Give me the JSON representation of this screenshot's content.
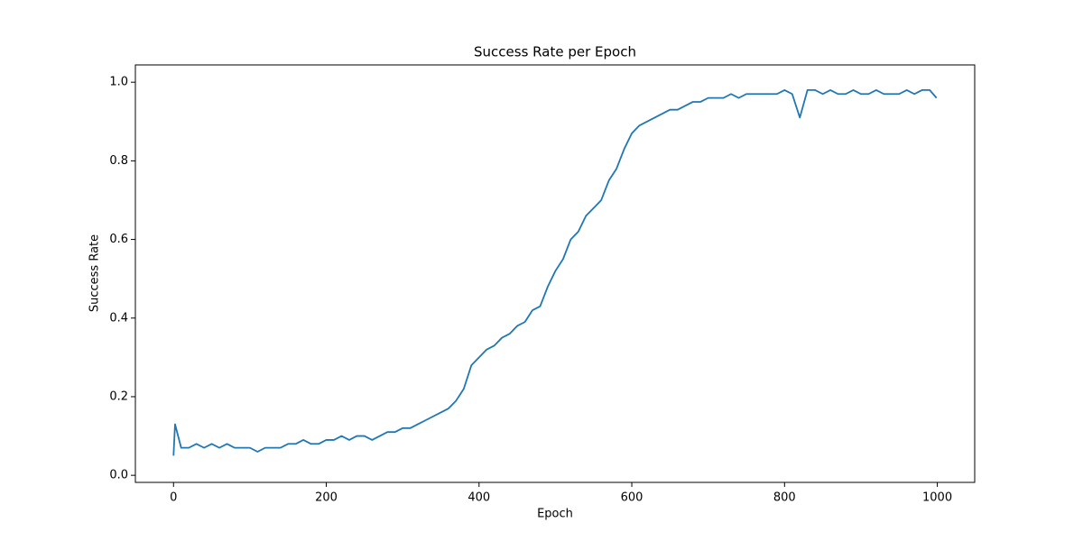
{
  "chart_data": {
    "type": "line",
    "title": "Success Rate per Epoch",
    "x_label": "Epoch",
    "y_label": "Success Rate",
    "x": [
      0,
      2,
      10,
      20,
      30,
      40,
      50,
      60,
      70,
      80,
      90,
      100,
      110,
      120,
      130,
      140,
      150,
      160,
      170,
      180,
      190,
      200,
      210,
      220,
      230,
      240,
      250,
      260,
      270,
      280,
      290,
      300,
      310,
      320,
      330,
      340,
      350,
      360,
      370,
      380,
      390,
      400,
      410,
      420,
      430,
      440,
      450,
      460,
      470,
      480,
      490,
      500,
      510,
      520,
      530,
      540,
      550,
      560,
      570,
      580,
      590,
      600,
      610,
      620,
      630,
      640,
      650,
      660,
      670,
      680,
      690,
      700,
      710,
      720,
      730,
      740,
      750,
      760,
      770,
      780,
      790,
      800,
      810,
      820,
      830,
      840,
      850,
      860,
      870,
      880,
      890,
      900,
      910,
      920,
      930,
      940,
      950,
      960,
      970,
      980,
      990,
      999
    ],
    "series": [
      {
        "name": "Success Rate",
        "color": "#1f77b4",
        "values": [
          0.05,
          0.13,
          0.07,
          0.07,
          0.08,
          0.07,
          0.08,
          0.07,
          0.08,
          0.07,
          0.07,
          0.07,
          0.06,
          0.07,
          0.07,
          0.07,
          0.08,
          0.08,
          0.09,
          0.08,
          0.08,
          0.09,
          0.09,
          0.1,
          0.09,
          0.1,
          0.1,
          0.09,
          0.1,
          0.11,
          0.11,
          0.12,
          0.12,
          0.13,
          0.14,
          0.15,
          0.16,
          0.17,
          0.19,
          0.22,
          0.28,
          0.3,
          0.32,
          0.33,
          0.35,
          0.36,
          0.38,
          0.39,
          0.42,
          0.43,
          0.48,
          0.52,
          0.55,
          0.6,
          0.62,
          0.66,
          0.68,
          0.7,
          0.75,
          0.78,
          0.83,
          0.87,
          0.89,
          0.9,
          0.91,
          0.92,
          0.93,
          0.93,
          0.94,
          0.95,
          0.95,
          0.96,
          0.96,
          0.96,
          0.97,
          0.96,
          0.97,
          0.97,
          0.97,
          0.97,
          0.97,
          0.98,
          0.97,
          0.91,
          0.98,
          0.98,
          0.97,
          0.98,
          0.97,
          0.97,
          0.98,
          0.97,
          0.97,
          0.98,
          0.97,
          0.97,
          0.97,
          0.98,
          0.97,
          0.98,
          0.98,
          0.96
        ]
      }
    ],
    "xlim": [
      -49.95,
      1048.95
    ],
    "ylim": [
      -0.018,
      1.044
    ],
    "xticks": [
      0,
      200,
      400,
      600,
      800,
      1000
    ],
    "yticks": [
      {
        "value": 0,
        "label": "0.0"
      },
      0.2,
      0.4,
      0.6,
      0.8,
      {
        "value": 1,
        "label": "1.0"
      }
    ]
  }
}
